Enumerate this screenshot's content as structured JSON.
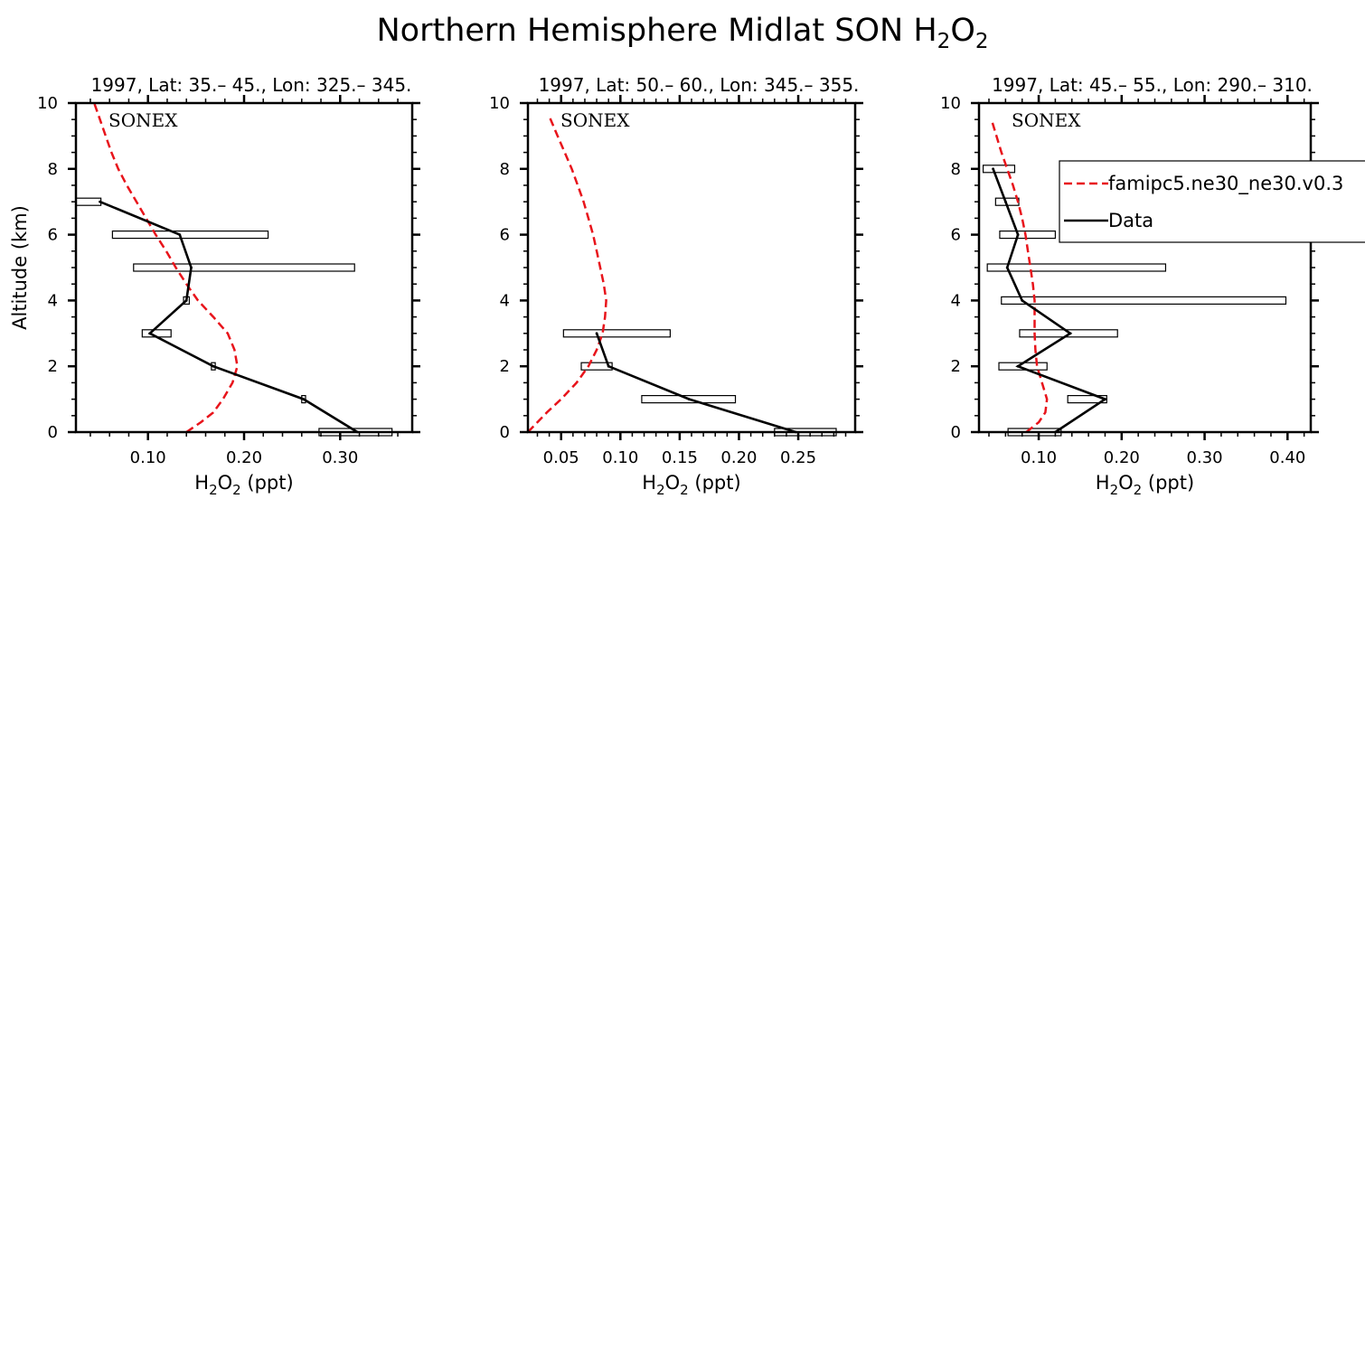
{
  "figure": {
    "title_main": "Northern Hemisphere Midlat SON H",
    "title_sub1": "2",
    "title_mid": "O",
    "title_sub2": "2"
  },
  "xlabel": {
    "main": "H",
    "sub1": "2",
    "mid": "O",
    "sub2": "2",
    "unit": " (ppt)"
  },
  "ylabel": "Altitude (km)",
  "legend": {
    "model": "famipc5.ne30_ne30.v0.3",
    "data": "Data"
  },
  "colors": {
    "model": "#e8141b",
    "data": "#000000",
    "box": "#000000"
  },
  "chart_data": [
    {
      "type": "line",
      "title": "1997, Lat: 35.– 45., Lon: 325.– 345.",
      "campaign": "SONEX",
      "xlim": [
        0.025,
        0.375
      ],
      "ylim": [
        0,
        10
      ],
      "xticks": [
        0.1,
        0.2,
        0.3
      ],
      "xtick_labels": [
        "0.10",
        "0.20",
        "0.30"
      ],
      "yticks": [
        0,
        2,
        4,
        6,
        8,
        10
      ],
      "ytick_labels": [
        "0",
        "2",
        "4",
        "6",
        "8",
        "10"
      ],
      "model": {
        "name": "famipc5.ne30_ne30.v0.3",
        "alt": [
          0.0,
          0.3,
          0.6,
          1.0,
          1.5,
          2.0,
          2.5,
          3.0,
          3.5,
          4.0,
          4.5,
          5.0,
          5.5,
          6.0,
          6.5,
          7.0,
          7.5,
          8.0,
          8.5,
          9.0,
          9.5,
          10.0
        ],
        "h2o2": [
          0.14,
          0.155,
          0.168,
          0.178,
          0.188,
          0.193,
          0.19,
          0.183,
          0.168,
          0.152,
          0.14,
          0.129,
          0.119,
          0.108,
          0.098,
          0.088,
          0.078,
          0.069,
          0.062,
          0.056,
          0.05,
          0.044
        ]
      },
      "data": {
        "name": "Data",
        "alt": [
          0,
          1,
          2,
          3,
          4,
          5,
          6,
          7
        ],
        "h2o2": [
          0.318,
          0.262,
          0.168,
          0.102,
          0.14,
          0.145,
          0.133,
          0.05
        ]
      },
      "boxes": [
        {
          "alt": 0,
          "low": 0.278,
          "high": 0.354
        },
        {
          "alt": 1,
          "low": 0.26,
          "high": 0.264
        },
        {
          "alt": 2,
          "low": 0.166,
          "high": 0.17
        },
        {
          "alt": 3,
          "low": 0.094,
          "high": 0.124
        },
        {
          "alt": 4,
          "low": 0.137,
          "high": 0.143
        },
        {
          "alt": 5,
          "low": 0.085,
          "high": 0.315
        },
        {
          "alt": 6,
          "low": 0.063,
          "high": 0.225
        },
        {
          "alt": 7,
          "low": 0.025,
          "high": 0.051
        }
      ]
    },
    {
      "type": "line",
      "title": "1997, Lat: 50.– 60., Lon: 345.– 355.",
      "campaign": "SONEX",
      "xlim": [
        0.022,
        0.298
      ],
      "ylim": [
        0,
        10
      ],
      "xticks": [
        0.05,
        0.1,
        0.15,
        0.2,
        0.25
      ],
      "xtick_labels": [
        "0.05",
        "0.10",
        "0.15",
        "0.20",
        "0.25"
      ],
      "yticks": [
        0,
        2,
        4,
        6,
        8,
        10
      ],
      "ytick_labels": [
        "0",
        "2",
        "4",
        "6",
        "8",
        "10"
      ],
      "model": {
        "name": "famipc5.ne30_ne30.v0.3",
        "alt": [
          0.0,
          0.3,
          0.6,
          1.0,
          1.5,
          2.0,
          2.5,
          3.0,
          3.5,
          4.0,
          4.5,
          5.0,
          5.5,
          6.0,
          6.5,
          7.0,
          7.5,
          8.0,
          8.5,
          9.0,
          9.6
        ],
        "h2o2": [
          0.022,
          0.03,
          0.038,
          0.05,
          0.063,
          0.073,
          0.08,
          0.085,
          0.087,
          0.088,
          0.086,
          0.083,
          0.08,
          0.077,
          0.073,
          0.069,
          0.064,
          0.059,
          0.053,
          0.047,
          0.04
        ]
      },
      "data": {
        "name": "Data",
        "alt": [
          0,
          1,
          2,
          3
        ],
        "h2o2": [
          0.248,
          0.158,
          0.09,
          0.08
        ]
      },
      "boxes": [
        {
          "alt": 0,
          "low": 0.23,
          "high": 0.282
        },
        {
          "alt": 1,
          "low": 0.118,
          "high": 0.197
        },
        {
          "alt": 2,
          "low": 0.067,
          "high": 0.093
        },
        {
          "alt": 3,
          "low": 0.052,
          "high": 0.142
        }
      ]
    },
    {
      "type": "line",
      "title": "1997, Lat: 45.– 55., Lon: 290.– 310.",
      "campaign": "SONEX",
      "xlim": [
        0.028,
        0.428
      ],
      "ylim": [
        0,
        10
      ],
      "xticks": [
        0.1,
        0.2,
        0.3,
        0.4
      ],
      "xtick_labels": [
        "0.10",
        "0.20",
        "0.30",
        "0.40"
      ],
      "yticks": [
        0,
        2,
        4,
        6,
        8,
        10
      ],
      "ytick_labels": [
        "0",
        "2",
        "4",
        "6",
        "8",
        "10"
      ],
      "model": {
        "name": "famipc5.ne30_ne30.v0.3",
        "alt": [
          0.0,
          0.3,
          0.6,
          1.0,
          1.5,
          2.0,
          2.5,
          3.0,
          3.5,
          4.0,
          4.5,
          5.0,
          5.5,
          6.0,
          6.5,
          7.0,
          7.5,
          8.0,
          8.5,
          9.0,
          9.5
        ],
        "h2o2": [
          0.085,
          0.1,
          0.108,
          0.11,
          0.104,
          0.098,
          0.096,
          0.095,
          0.095,
          0.095,
          0.093,
          0.09,
          0.087,
          0.084,
          0.08,
          0.075,
          0.069,
          0.062,
          0.055,
          0.049,
          0.043
        ]
      },
      "data": {
        "name": "Data",
        "alt": [
          0,
          1,
          2,
          3,
          4,
          5,
          6,
          7,
          8
        ],
        "h2o2": [
          0.12,
          0.18,
          0.075,
          0.138,
          0.08,
          0.062,
          0.075,
          0.06,
          0.045
        ]
      },
      "boxes": [
        {
          "alt": 0,
          "low": 0.063,
          "high": 0.127
        },
        {
          "alt": 1,
          "low": 0.135,
          "high": 0.182
        },
        {
          "alt": 2,
          "low": 0.052,
          "high": 0.11
        },
        {
          "alt": 3,
          "low": 0.077,
          "high": 0.195
        },
        {
          "alt": 4,
          "low": 0.055,
          "high": 0.398
        },
        {
          "alt": 5,
          "low": 0.038,
          "high": 0.253
        },
        {
          "alt": 6,
          "low": 0.053,
          "high": 0.12
        },
        {
          "alt": 7,
          "low": 0.048,
          "high": 0.076
        },
        {
          "alt": 8,
          "low": 0.033,
          "high": 0.071
        }
      ]
    }
  ]
}
